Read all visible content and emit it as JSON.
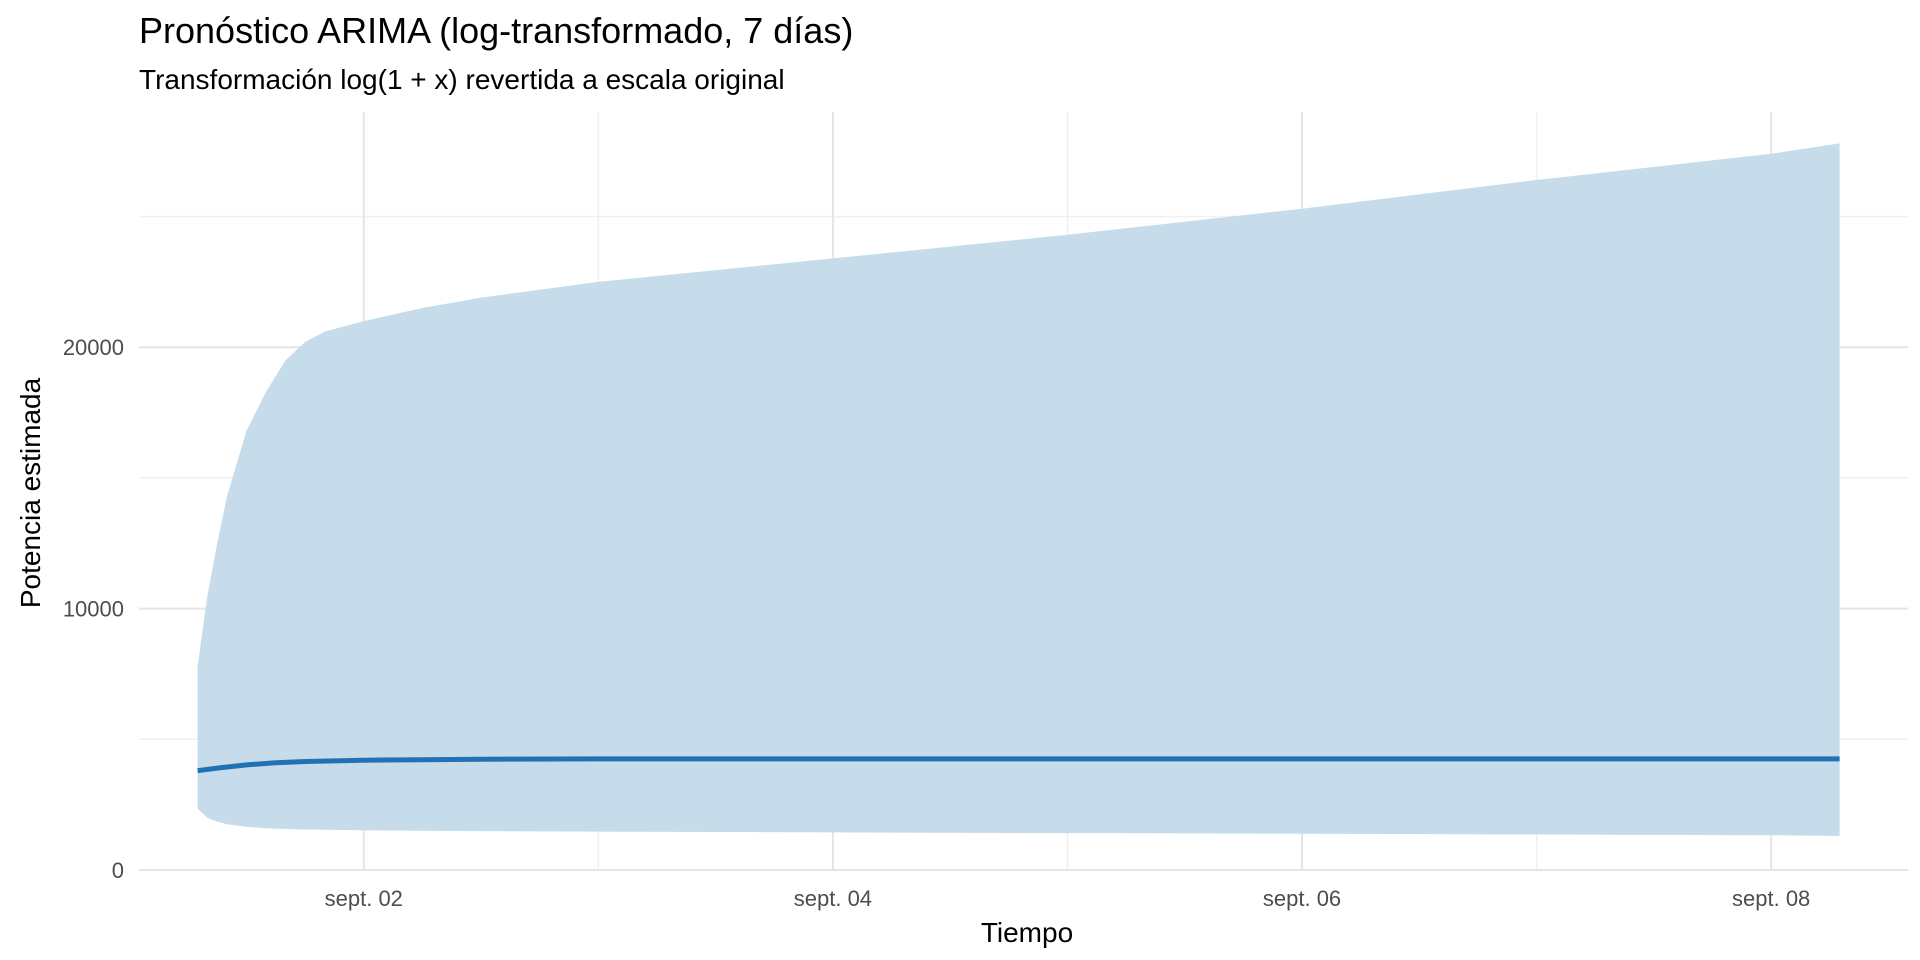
{
  "chart_data": {
    "type": "area",
    "title": "Pronóstico ARIMA (log-transformado, 7 días)",
    "subtitle": "Transformación log(1 + x) revertida a escala original",
    "xlabel": "Tiempo",
    "ylabel": "Potencia estimada",
    "x_ticks": [
      {
        "x": "2025-09-02",
        "label": "sept. 02"
      },
      {
        "x": "2025-09-04",
        "label": "sept. 04"
      },
      {
        "x": "2025-09-06",
        "label": "sept. 06"
      },
      {
        "x": "2025-09-08",
        "label": "sept. 08"
      }
    ],
    "y_ticks": [
      {
        "y": 0,
        "label": "0"
      },
      {
        "y": 10000,
        "label": "10000"
      },
      {
        "y": 20000,
        "label": "20000"
      }
    ],
    "xlim": [
      "2025-09-01T01:00",
      "2025-09-08T14:00"
    ],
    "ylim": [
      0,
      29000
    ],
    "grid": true,
    "colors": {
      "band": "#c6dcea",
      "line": "#2171b5",
      "grid_major": "#e5e5e5",
      "grid_minor": "#f0f0f0",
      "axis_text": "#4d4d4d"
    },
    "series": [
      {
        "type": "line",
        "x": [
          "2025-09-01T07:00",
          "2025-09-01T09:00",
          "2025-09-01T12:00",
          "2025-09-01T15:00",
          "2025-09-01T18:00",
          "2025-09-02T00:00",
          "2025-09-02T06:00",
          "2025-09-02T12:00",
          "2025-09-03T00:00",
          "2025-09-04T00:00",
          "2025-09-05T00:00",
          "2025-09-06T00:00",
          "2025-09-07T00:00",
          "2025-09-08T00:00",
          "2025-09-08T07:00"
        ],
        "y": [
          3800,
          3900,
          4020,
          4100,
          4150,
          4200,
          4220,
          4240,
          4250,
          4250,
          4250,
          4250,
          4250,
          4250,
          4250
        ]
      },
      {
        "type": "band",
        "x": [
          "2025-09-01T07:00",
          "2025-09-01T08:00",
          "2025-09-01T09:00",
          "2025-09-01T10:00",
          "2025-09-01T12:00",
          "2025-09-01T14:00",
          "2025-09-01T16:00",
          "2025-09-01T18:00",
          "2025-09-01T20:00",
          "2025-09-02T00:00",
          "2025-09-02T06:00",
          "2025-09-02T12:00",
          "2025-09-03T00:00",
          "2025-09-04T00:00",
          "2025-09-05T00:00",
          "2025-09-06T00:00",
          "2025-09-07T00:00",
          "2025-09-08T00:00",
          "2025-09-08T07:00"
        ],
        "lower": [
          2350,
          2000,
          1850,
          1750,
          1650,
          1600,
          1570,
          1550,
          1540,
          1520,
          1500,
          1490,
          1470,
          1440,
          1410,
          1390,
          1360,
          1330,
          1300
        ],
        "upper": [
          7800,
          10500,
          12500,
          14300,
          16800,
          18300,
          19500,
          20200,
          20600,
          21000,
          21500,
          21900,
          22500,
          23400,
          24300,
          25300,
          26400,
          27400,
          27800
        ]
      }
    ]
  }
}
